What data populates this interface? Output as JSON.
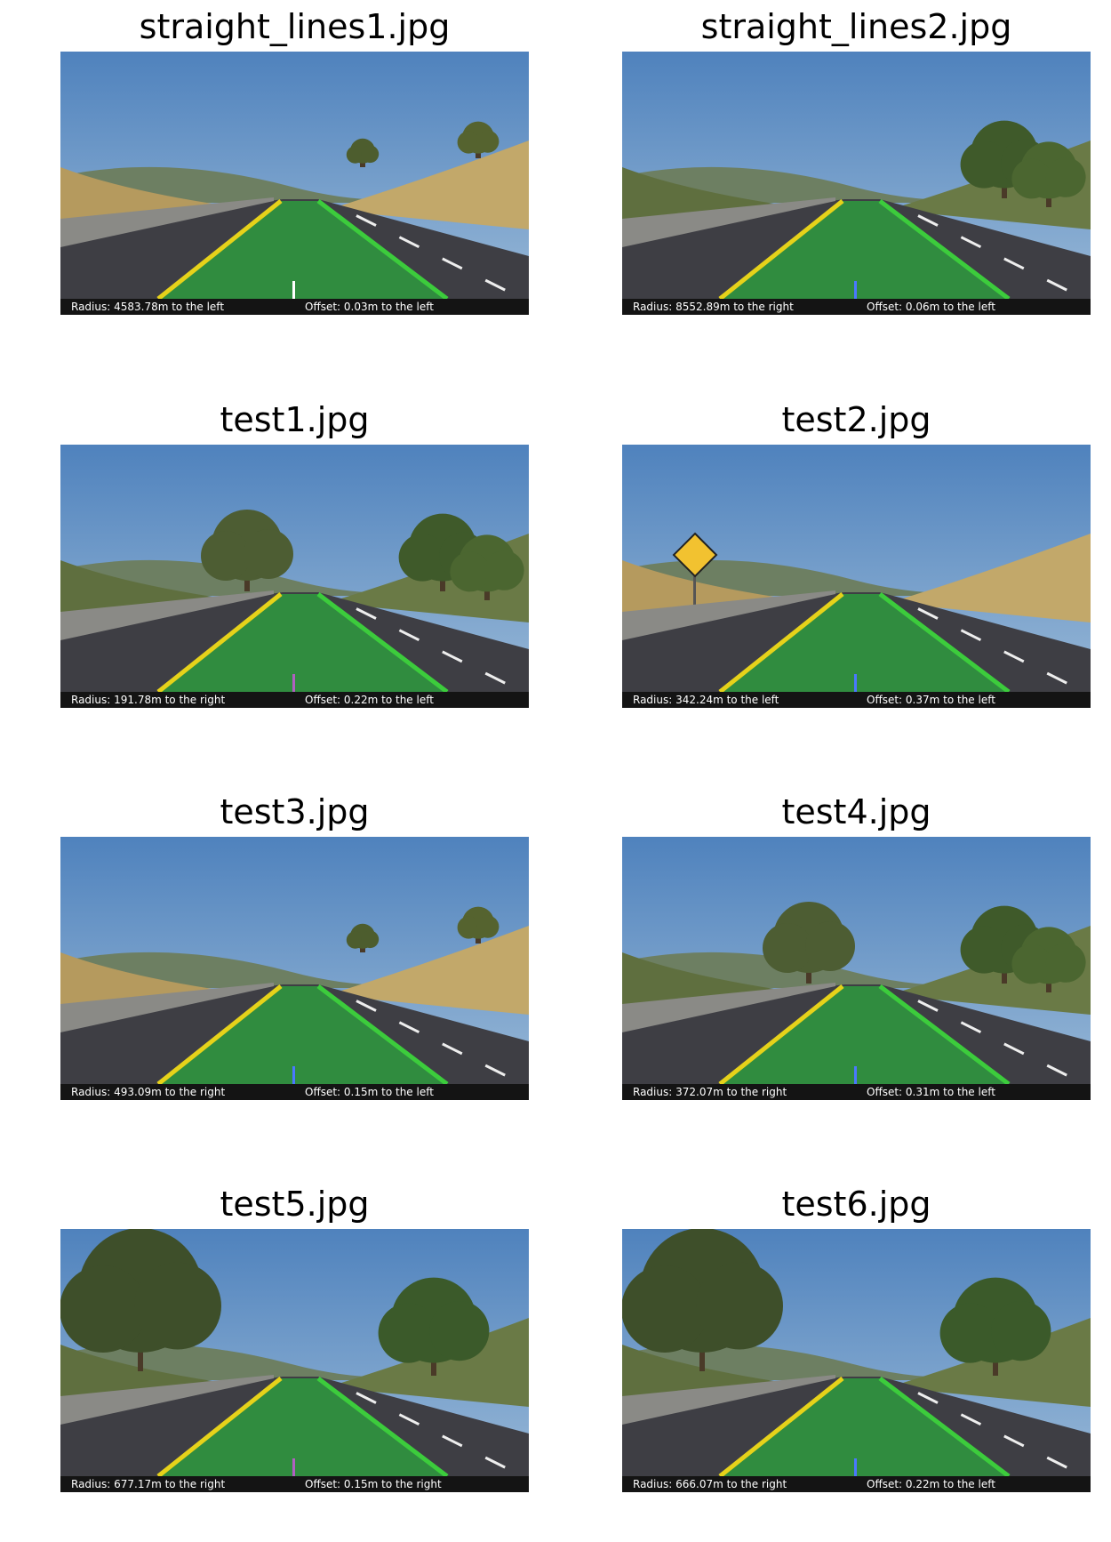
{
  "colors": {
    "sky": "#5f8fc4",
    "road": "#3e3e44",
    "lane_fill": "#2e9a3e",
    "left_line": "#e6d21a",
    "right_line": "#3ccc3c",
    "caption_bar": "#141414"
  },
  "panels": [
    {
      "title": "straight_lines1.jpg",
      "radius_text": "Radius: 4583.78m to the left",
      "offset_text": "Offset: 0.03m to the left",
      "scene": "hills-dry",
      "center_marker_color": "#ffffff"
    },
    {
      "title": "straight_lines2.jpg",
      "radius_text": "Radius: 8552.89m to the right",
      "offset_text": "Offset: 0.06m to the left",
      "scene": "trees-right",
      "center_marker_color": "#4a78ff"
    },
    {
      "title": "test1.jpg",
      "radius_text": "Radius: 191.78m to the right",
      "offset_text": "Offset: 0.22m to the left",
      "scene": "bridge-light",
      "center_marker_color": "#b060c0"
    },
    {
      "title": "test2.jpg",
      "radius_text": "Radius: 342.24m to the left",
      "offset_text": "Offset: 0.37m to the left",
      "scene": "deer-sign",
      "center_marker_color": "#4a78ff"
    },
    {
      "title": "test3.jpg",
      "radius_text": "Radius: 493.09m to the right",
      "offset_text": "Offset: 0.15m to the left",
      "scene": "hills-dry",
      "center_marker_color": "#4a78ff"
    },
    {
      "title": "test4.jpg",
      "radius_text": "Radius: 372.07m to the right",
      "offset_text": "Offset: 0.31m to the left",
      "scene": "bridge-light",
      "center_marker_color": "#4a78ff"
    },
    {
      "title": "test5.jpg",
      "radius_text": "Radius: 677.17m to the right",
      "offset_text": "Offset: 0.15m to the right",
      "scene": "shadows",
      "center_marker_color": "#b060c0"
    },
    {
      "title": "test6.jpg",
      "radius_text": "Radius: 666.07m to the right",
      "offset_text": "Offset: 0.22m to the left",
      "scene": "trees-left",
      "center_marker_color": "#4a78ff"
    }
  ]
}
